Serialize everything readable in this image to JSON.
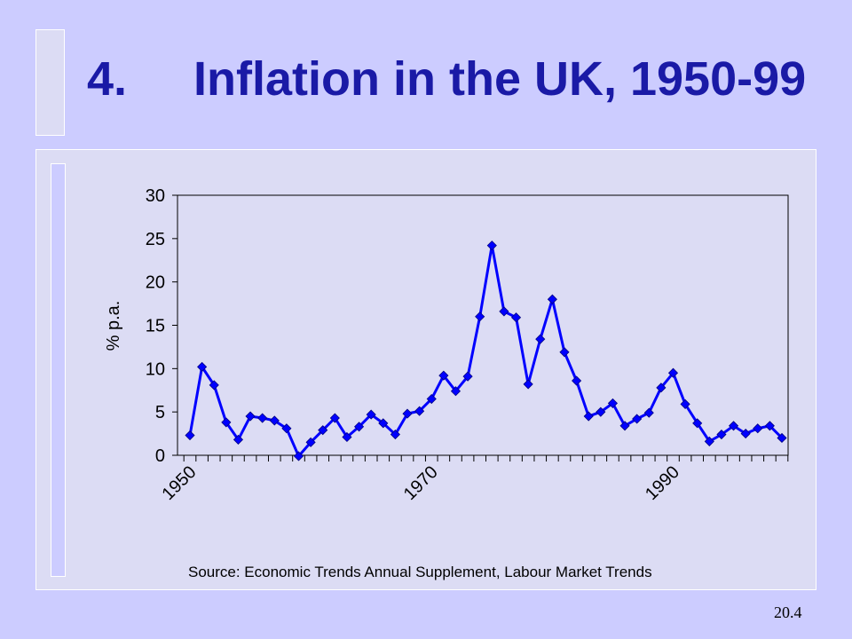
{
  "slide": {
    "title": "4.\tInflation in the UK, 1950-99",
    "source": "Source: Economic Trends Annual Supplement, Labour Market Trends",
    "page_number": "20.4"
  },
  "colors": {
    "background": "#ccccff",
    "panel": "#dcdcf4",
    "title": "#1a1aa6",
    "series": "#0000ff"
  },
  "chart_data": {
    "type": "line",
    "ylabel": "% p.a.",
    "xlabel": "",
    "ylim": [
      0,
      30
    ],
    "yticks": [
      0,
      5,
      10,
      15,
      20,
      25,
      30
    ],
    "xtick_labels": [
      "1950",
      "1970",
      "1990"
    ],
    "grid": false,
    "legend": "none",
    "marker": "diamond",
    "x": [
      1950,
      1951,
      1952,
      1953,
      1954,
      1955,
      1956,
      1957,
      1958,
      1959,
      1960,
      1961,
      1962,
      1963,
      1964,
      1965,
      1966,
      1967,
      1968,
      1969,
      1970,
      1971,
      1972,
      1973,
      1974,
      1975,
      1976,
      1977,
      1978,
      1979,
      1980,
      1981,
      1982,
      1983,
      1984,
      1985,
      1986,
      1987,
      1988,
      1989,
      1990,
      1991,
      1992,
      1993,
      1994,
      1995,
      1996,
      1997,
      1998,
      1999
    ],
    "series": [
      {
        "values": [
          2.3,
          10.2,
          8.1,
          3.8,
          1.8,
          4.5,
          4.3,
          4.0,
          3.1,
          -0.1,
          1.5,
          2.9,
          4.3,
          2.1,
          3.3,
          4.7,
          3.7,
          2.4,
          4.8,
          5.1,
          6.5,
          9.2,
          7.4,
          9.1,
          16.0,
          24.2,
          16.6,
          15.9,
          8.2,
          13.4,
          18.0,
          11.9,
          8.6,
          4.5,
          5.0,
          6.0,
          3.4,
          4.2,
          4.9,
          7.8,
          9.5,
          5.9,
          3.7,
          1.6,
          2.4,
          3.4,
          2.5,
          3.1,
          3.4,
          2.0
        ]
      }
    ]
  }
}
